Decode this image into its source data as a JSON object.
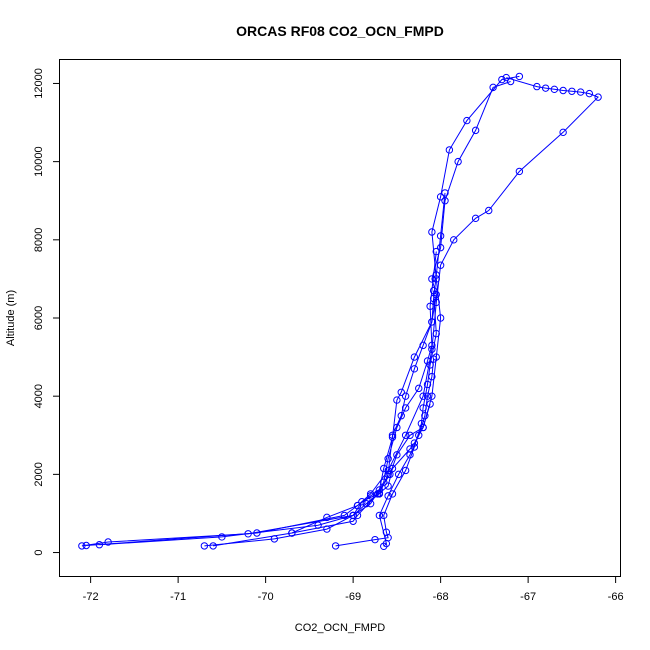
{
  "chart_data": {
    "type": "line",
    "title": "ORCAS RF08 CO2_OCN_FMPD",
    "xlabel": "CO2_OCN_FMPD",
    "ylabel": "Altitude (m)",
    "xlim": [
      -72.35,
      -65.95
    ],
    "ylim": [
      -600,
      12600
    ],
    "xticks": [
      -72,
      -71,
      -70,
      -69,
      -68,
      -67,
      -66
    ],
    "yticks": [
      0,
      2000,
      4000,
      6000,
      8000,
      10000,
      12000
    ],
    "grid": false,
    "legend": "none",
    "marker": "open-circle",
    "series_color": "#0000ff",
    "series": [
      {
        "x": [
          -72.1,
          -71.8,
          -70.2,
          -69.0,
          -68.9,
          -68.7,
          -68.6,
          -68.55,
          -68.35,
          -68.3,
          -68.2,
          -68.1,
          -68.05,
          -68.0,
          -68.05,
          -68.1,
          -68.0,
          -67.9,
          -67.7,
          -67.3,
          -67.1
        ],
        "y": [
          170,
          270,
          480,
          950,
          1300,
          1520,
          1700,
          2150,
          2650,
          2800,
          3200,
          4000,
          5000,
          6000,
          7000,
          8200,
          9100,
          10300,
          11050,
          12100,
          12180
        ]
      },
      {
        "x": [
          -67.25,
          -66.9,
          -66.8,
          -66.7,
          -66.6,
          -66.5,
          -66.4,
          -66.3,
          -66.2,
          -66.6,
          -67.1,
          -67.45,
          -67.6,
          -67.85,
          -68.0,
          -68.05,
          -68.1,
          -68.2,
          -68.4,
          -68.6,
          -68.8,
          -68.95,
          -69.3,
          -69.7,
          -70.6
        ],
        "y": [
          12150,
          11920,
          11880,
          11850,
          11820,
          11800,
          11780,
          11740,
          11650,
          10750,
          9750,
          8750,
          8550,
          8000,
          7350,
          6400,
          5200,
          4000,
          3000,
          2100,
          1500,
          1200,
          900,
          500,
          170
        ]
      },
      {
        "x": [
          -72.05,
          -70.1,
          -69.1,
          -68.95,
          -68.8,
          -68.7,
          -68.65,
          -68.55,
          -68.5,
          -68.45,
          -68.3,
          -68.1,
          -68.05,
          -68.1,
          -68.0,
          -67.95,
          -67.8,
          -67.6,
          -67.4,
          -67.2
        ],
        "y": [
          180,
          500,
          950,
          1200,
          1450,
          1600,
          2150,
          2950,
          3900,
          4100,
          5000,
          5900,
          6600,
          7000,
          7800,
          9000,
          10000,
          10800,
          11900,
          12050
        ]
      },
      {
        "x": [
          -71.9,
          -70.5,
          -69.4,
          -69.0,
          -68.85,
          -68.7,
          -68.6,
          -68.55,
          -68.45,
          -68.4,
          -68.3,
          -68.2,
          -68.1,
          -68.08,
          -68.05,
          -68.0,
          -67.95
        ],
        "y": [
          200,
          400,
          700,
          950,
          1250,
          1500,
          2000,
          3000,
          3500,
          4000,
          4700,
          5300,
          5900,
          6500,
          7100,
          8100,
          9200
        ]
      },
      {
        "x": [
          -70.7,
          -69.9,
          -69.3,
          -69.0,
          -68.8,
          -68.65,
          -68.6,
          -68.5,
          -68.4,
          -68.25,
          -68.15,
          -68.1,
          -68.12,
          -68.05
        ],
        "y": [
          170,
          350,
          600,
          950,
          1250,
          1800,
          2400,
          3200,
          3700,
          4200,
          4900,
          5300,
          6300,
          7700
        ]
      },
      {
        "x": [
          -69.2,
          -68.75,
          -68.6,
          -68.62,
          -68.65,
          -68.55,
          -68.4,
          -68.3,
          -68.22,
          -68.2,
          -68.15,
          -68.12,
          -68.05,
          -68.08
        ],
        "y": [
          170,
          330,
          380,
          520,
          950,
          1500,
          2100,
          2700,
          3300,
          3700,
          4300,
          4800,
          5600,
          6700
        ]
      },
      {
        "x": [
          -68.65,
          -68.62,
          -68.7,
          -68.6,
          -68.48,
          -68.35,
          -68.25,
          -68.18,
          -68.15,
          -68.1,
          -68.08
        ],
        "y": [
          160,
          230,
          950,
          1450,
          2000,
          2500,
          3000,
          3500,
          4000,
          4500,
          4950
        ]
      },
      {
        "x": [
          -69.7,
          -69.0,
          -68.95,
          -68.72,
          -68.58,
          -68.5,
          -68.35,
          -68.2,
          -68.12
        ],
        "y": [
          500,
          800,
          950,
          1500,
          2000,
          2500,
          3000,
          3200,
          3800
        ]
      }
    ]
  }
}
